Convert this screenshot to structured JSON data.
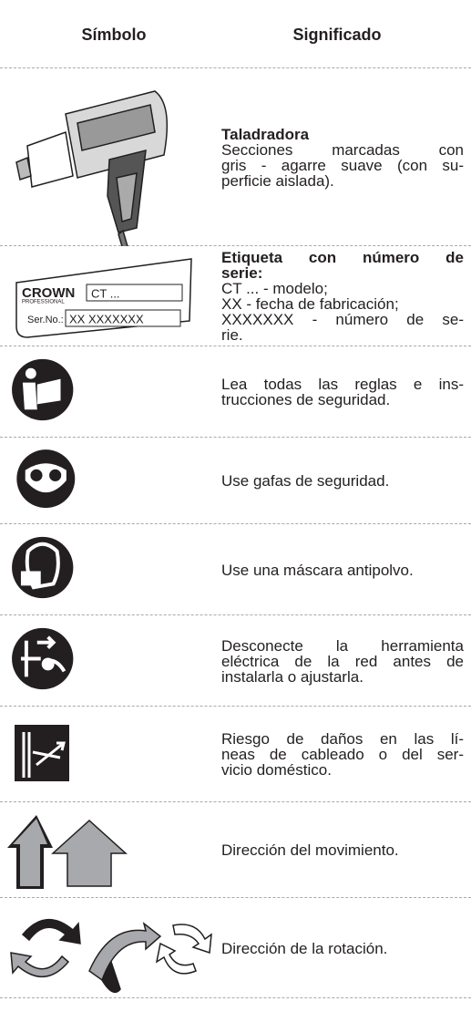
{
  "header": {
    "columns": [
      "Símbolo",
      "Significado"
    ]
  },
  "rows": [
    {
      "title": [
        "Taladradora"
      ],
      "lines": [
        "Secciones marcadas con",
        "gris - agarre suave (con su-",
        "perficie aislada)."
      ]
    },
    {
      "symbol_texts": [
        "CROWN",
        "PROFESSIONAL",
        "CT ...",
        "Ser.No.:",
        "XX XXXXXXX"
      ],
      "title": [
        "Etiqueta con número de",
        "serie:"
      ],
      "lines": [
        "CT ... - modelo;",
        "XX - fecha de fabricación;",
        "XXXXXXX - número de se-",
        "rie."
      ]
    },
    {
      "lines": [
        "Lea todas las reglas e ins-",
        "trucciones de seguridad."
      ]
    },
    {
      "lines": [
        "Use gafas de seguridad."
      ]
    },
    {
      "lines": [
        "Use una máscara antipolvo."
      ]
    },
    {
      "lines": [
        "Desconecte la herramienta",
        "eléctrica de la red antes de",
        "instalarla o ajustarla."
      ]
    },
    {
      "lines": [
        "Riesgo de daños en las lí-",
        "neas de cableado o del ser-",
        "vicio doméstico."
      ]
    },
    {
      "lines": [
        "Dirección del movimiento."
      ]
    },
    {
      "lines": [
        "Dirección de la rotación."
      ]
    }
  ]
}
